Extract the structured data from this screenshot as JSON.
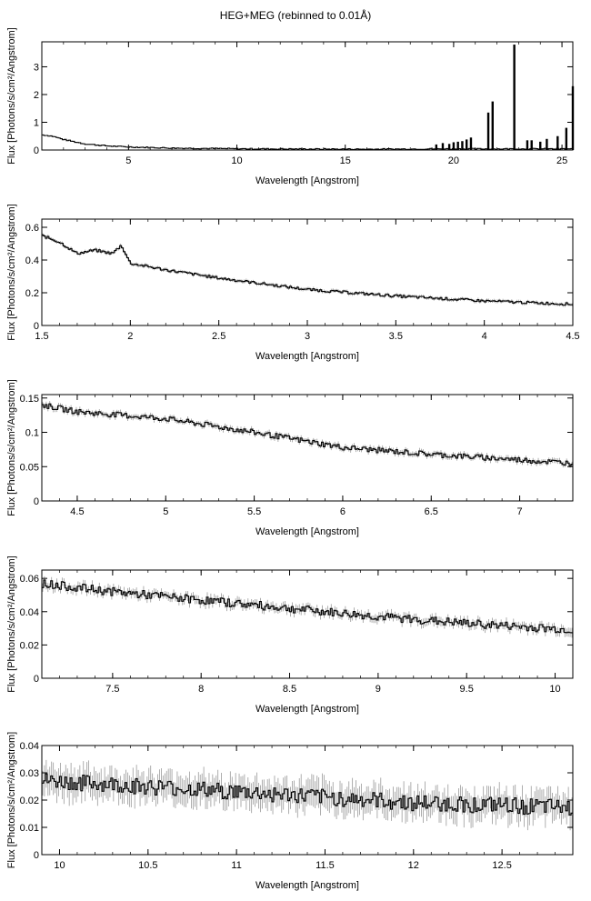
{
  "figure": {
    "title": "HEG+MEG (rebinned to 0.01Å)"
  },
  "chart_data": [
    {
      "type": "line",
      "xlabel": "Wavelength [Angstrom]",
      "ylabel": "Flux [Photons/s/cm²/Angstrom]",
      "xlim": [
        1.0,
        25.5
      ],
      "ylim": [
        0,
        3.9
      ],
      "xticks": [
        5,
        10,
        15,
        20,
        25
      ],
      "yticks": [
        0,
        1,
        2,
        3
      ],
      "continuum": [
        [
          1.0,
          0.55
        ],
        [
          1.5,
          0.5
        ],
        [
          2.0,
          0.38
        ],
        [
          3.0,
          0.22
        ],
        [
          4.0,
          0.15
        ],
        [
          5.0,
          0.11
        ],
        [
          7.0,
          0.07
        ],
        [
          10.0,
          0.045
        ],
        [
          13.0,
          0.035
        ],
        [
          16.0,
          0.03
        ],
        [
          19.0,
          0.04
        ],
        [
          22.0,
          0.04
        ],
        [
          25.5,
          0.04
        ]
      ],
      "lines": [
        [
          19.2,
          0.2
        ],
        [
          19.5,
          0.25
        ],
        [
          19.8,
          0.22
        ],
        [
          20.0,
          0.28
        ],
        [
          20.2,
          0.3
        ],
        [
          20.4,
          0.32
        ],
        [
          20.6,
          0.38
        ],
        [
          20.8,
          0.45
        ],
        [
          21.6,
          1.35
        ],
        [
          21.8,
          1.75
        ],
        [
          22.8,
          3.8
        ],
        [
          23.4,
          0.35
        ],
        [
          23.6,
          0.35
        ],
        [
          24.0,
          0.3
        ],
        [
          24.3,
          0.4
        ],
        [
          24.8,
          0.5
        ],
        [
          25.2,
          0.8
        ],
        [
          25.5,
          2.3
        ]
      ],
      "noise": 0.02,
      "errbar": 0.01
    },
    {
      "type": "line",
      "xlabel": "Wavelength [Angstrom]",
      "ylabel": "Flux [Photons/s/cm²/Angstrom]",
      "xlim": [
        1.5,
        4.5
      ],
      "ylim": [
        0,
        0.65
      ],
      "xticks": [
        1.5,
        2,
        2.5,
        3,
        3.5,
        4,
        4.5
      ],
      "yticks": [
        0,
        0.2,
        0.4,
        0.6
      ],
      "continuum": [
        [
          1.5,
          0.55
        ],
        [
          1.6,
          0.51
        ],
        [
          1.7,
          0.44
        ],
        [
          1.8,
          0.46
        ],
        [
          1.9,
          0.44
        ],
        [
          1.95,
          0.49
        ],
        [
          2.0,
          0.38
        ],
        [
          2.2,
          0.34
        ],
        [
          2.5,
          0.29
        ],
        [
          3.0,
          0.22
        ],
        [
          3.5,
          0.18
        ],
        [
          4.0,
          0.15
        ],
        [
          4.5,
          0.13
        ]
      ],
      "lines": [],
      "noise": 0.008,
      "errbar": 0.008
    },
    {
      "type": "line",
      "xlabel": "Wavelength [Angstrom]",
      "ylabel": "Flux [Photons/s/cm²/Angstrom]",
      "xlim": [
        4.3,
        7.3
      ],
      "ylim": [
        0,
        0.155
      ],
      "xticks": [
        4.5,
        5,
        5.5,
        6,
        6.5,
        7
      ],
      "yticks": [
        0,
        0.05,
        0.1,
        0.15
      ],
      "continuum": [
        [
          4.3,
          0.14
        ],
        [
          4.5,
          0.13
        ],
        [
          5.0,
          0.12
        ],
        [
          5.5,
          0.1
        ],
        [
          6.0,
          0.078
        ],
        [
          6.5,
          0.068
        ],
        [
          7.0,
          0.06
        ],
        [
          7.3,
          0.055
        ]
      ],
      "lines": [],
      "noise": 0.004,
      "errbar": 0.003
    },
    {
      "type": "line",
      "xlabel": "Wavelength [Angstrom]",
      "ylabel": "Flux [Photons/s/cm²/Angstrom]",
      "xlim": [
        7.1,
        10.1
      ],
      "ylim": [
        0,
        0.065
      ],
      "xticks": [
        7.5,
        8,
        8.5,
        9,
        9.5,
        10
      ],
      "yticks": [
        0,
        0.02,
        0.04,
        0.06
      ],
      "continuum": [
        [
          7.1,
          0.057
        ],
        [
          7.5,
          0.052
        ],
        [
          8.0,
          0.047
        ],
        [
          8.5,
          0.042
        ],
        [
          9.0,
          0.037
        ],
        [
          9.5,
          0.033
        ],
        [
          10.1,
          0.029
        ]
      ],
      "lines": [],
      "noise": 0.0025,
      "errbar": 0.002
    },
    {
      "type": "line",
      "xlabel": "Wavelength [Angstrom]",
      "ylabel": "Flux [Photons/s/cm²/Angstrom]",
      "xlim": [
        9.9,
        12.9
      ],
      "ylim": [
        0,
        0.04
      ],
      "xticks": [
        10,
        10.5,
        11,
        11.5,
        12,
        12.5
      ],
      "yticks": [
        0,
        0.01,
        0.02,
        0.03,
        0.04
      ],
      "continuum": [
        [
          9.9,
          0.027
        ],
        [
          10.5,
          0.025
        ],
        [
          11.0,
          0.023
        ],
        [
          11.5,
          0.021
        ],
        [
          12.0,
          0.019
        ],
        [
          12.5,
          0.018
        ],
        [
          12.9,
          0.017
        ]
      ],
      "lines": [],
      "noise": 0.003,
      "errbar": 0.004
    }
  ]
}
